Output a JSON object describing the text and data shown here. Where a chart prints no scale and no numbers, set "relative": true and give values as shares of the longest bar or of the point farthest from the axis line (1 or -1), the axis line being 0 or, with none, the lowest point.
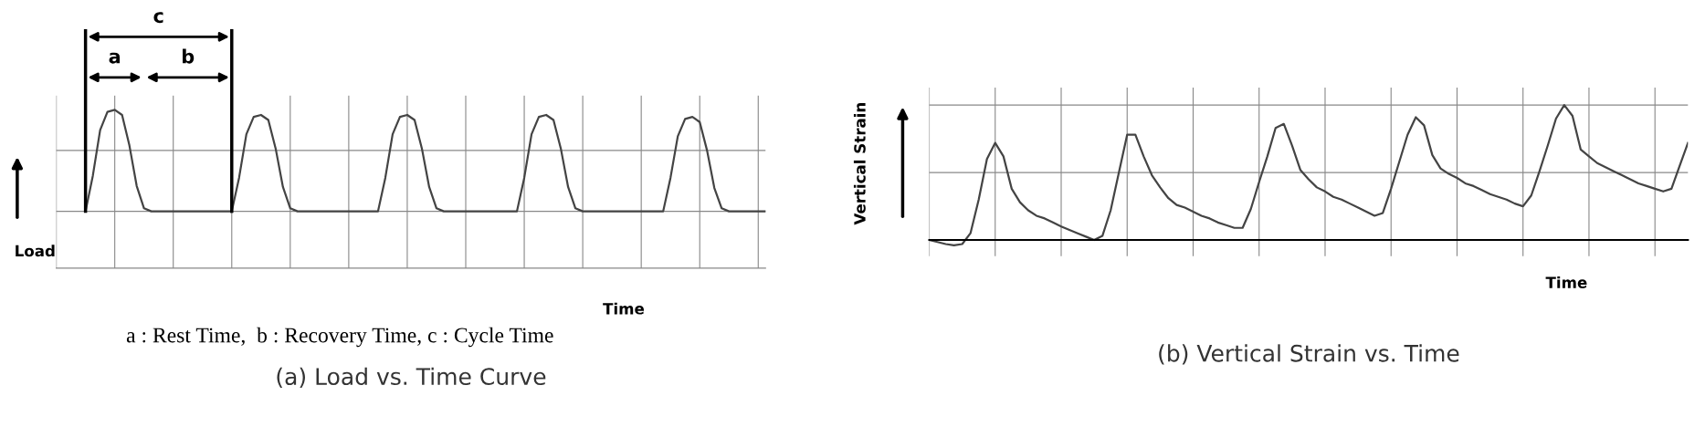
{
  "chart_data": [
    {
      "type": "line",
      "title": "(a) Load vs. Time Curve",
      "xlabel": "Time",
      "ylabel": "Load",
      "relative": true,
      "grid": true,
      "tick_labels": false,
      "annotations": [
        "a",
        "b",
        "c",
        "a : Rest Time,  b : Recovery Time, c : Cycle Time"
      ],
      "categories": [
        null,
        null,
        null,
        null,
        null,
        null,
        null,
        null,
        null,
        null,
        null,
        null,
        null,
        null,
        null,
        null,
        null,
        null,
        null,
        null,
        null,
        null,
        null,
        null,
        null,
        null,
        null,
        null,
        null,
        null,
        null,
        null,
        null,
        null,
        null,
        null,
        null,
        null,
        null,
        null,
        null,
        null,
        null,
        null,
        null,
        null,
        null,
        null,
        null,
        null,
        null,
        null,
        null,
        null,
        null,
        null,
        null,
        null,
        null,
        null,
        null,
        null,
        null,
        null,
        null,
        null,
        null,
        null,
        null,
        null,
        null,
        null,
        null,
        null,
        null,
        null,
        null,
        null,
        null,
        null,
        null,
        null,
        null,
        null,
        null,
        null,
        null,
        null,
        null,
        null,
        null,
        null,
        null,
        null,
        null,
        null,
        null,
        null
      ],
      "series": [
        {
          "color": "#444444",
          "values": [
            null,
            null,
            null,
            null,
            0,
            0.35,
            0.8,
            0.98,
            1,
            0.95,
            0.65,
            0.25,
            0.03,
            0,
            0,
            0,
            0,
            0,
            0,
            0,
            0,
            0,
            0,
            0,
            0,
            0.33,
            0.76,
            0.93,
            0.95,
            0.9,
            0.62,
            0.24,
            0.03,
            0,
            0,
            0,
            0,
            0,
            0,
            0,
            0,
            0,
            0,
            0,
            0,
            0.33,
            0.76,
            0.93,
            0.95,
            0.9,
            0.62,
            0.24,
            0.03,
            0,
            0,
            0,
            0,
            0,
            0,
            0,
            0,
            0,
            0,
            0,
            0.33,
            0.76,
            0.93,
            0.95,
            0.9,
            0.62,
            0.24,
            0.03,
            0,
            0,
            0,
            0,
            0,
            0,
            0,
            0,
            0,
            0,
            0,
            0,
            0.33,
            0.74,
            0.91,
            0.93,
            0.88,
            0.6,
            0.23,
            0.03,
            0,
            0,
            0,
            0,
            0,
            0
          ]
        }
      ]
    },
    {
      "type": "line",
      "title": "(b) Vertical Strain vs. Time",
      "xlabel": "Time",
      "ylabel": "Vertical Strain",
      "relative": true,
      "grid": true,
      "tick_labels": false,
      "categories": [
        null,
        null,
        null,
        null,
        null,
        null,
        null,
        null,
        null,
        null,
        null,
        null,
        null,
        null,
        null,
        null,
        null,
        null,
        null,
        null,
        null,
        null,
        null,
        null,
        null,
        null,
        null,
        null,
        null,
        null,
        null,
        null,
        null,
        null,
        null,
        null,
        null,
        null,
        null,
        null,
        null,
        null,
        null,
        null,
        null,
        null,
        null,
        null,
        null,
        null,
        null,
        null,
        null,
        null,
        null,
        null,
        null,
        null,
        null,
        null,
        null,
        null,
        null,
        null,
        null,
        null,
        null,
        null,
        null,
        null,
        null,
        null,
        null,
        null,
        null,
        null,
        null,
        null,
        null,
        null,
        null,
        null,
        null,
        null,
        null,
        null,
        null,
        null,
        null,
        null,
        null,
        null,
        null
      ],
      "series": [
        {
          "color": "#444444",
          "values": [
            0,
            -0.015,
            -0.03,
            -0.04,
            -0.03,
            0.05,
            0.3,
            0.6,
            0.72,
            0.62,
            0.38,
            0.28,
            0.22,
            0.18,
            0.16,
            0.13,
            0.1,
            0.075,
            0.05,
            0.025,
            0,
            0.03,
            0.22,
            0.5,
            0.78,
            0.78,
            0.62,
            0.48,
            0.39,
            0.31,
            0.26,
            0.24,
            0.21,
            0.18,
            0.16,
            0.13,
            0.11,
            0.09,
            0.09,
            0.23,
            0.43,
            0.62,
            0.83,
            0.86,
            0.7,
            0.52,
            0.45,
            0.39,
            0.36,
            0.32,
            0.3,
            0.27,
            0.24,
            0.21,
            0.18,
            0.2,
            0.38,
            0.58,
            0.78,
            0.91,
            0.85,
            0.63,
            0.53,
            0.49,
            0.46,
            0.42,
            0.4,
            0.37,
            0.34,
            0.32,
            0.3,
            0.27,
            0.25,
            0.33,
            0.51,
            0.7,
            0.9,
            1,
            0.92,
            0.67,
            0.62,
            0.57,
            0.54,
            0.51,
            0.48,
            0.45,
            0.42,
            0.4,
            0.38,
            0.36,
            0.38,
            0.55,
            0.72
          ]
        }
      ]
    }
  ]
}
